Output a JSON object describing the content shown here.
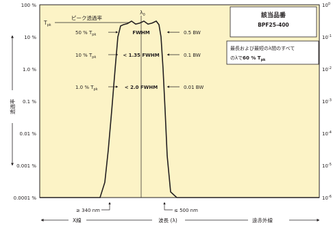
{
  "chart_data": {
    "type": "line",
    "title": "",
    "xlabel": "波長 (λ)",
    "ylabel": "透過率",
    "x_left_label": "X線",
    "x_right_label": "遠赤外線",
    "x_markers": [
      {
        "label": "≥ 340 nm",
        "value": 340
      },
      {
        "label": "≤ 500 nm",
        "value": 500
      }
    ],
    "y_scale": "log",
    "ylim": [
      0.0001,
      100
    ],
    "y_ticks_left": [
      "100 %",
      "10 %",
      "1.0 %",
      "0.1 %",
      "0.01 %",
      "0.001 %",
      "0.0001 %"
    ],
    "y_ticks_right": [
      {
        "base": "10",
        "exp": "0"
      },
      {
        "base": "10",
        "exp": "-1"
      },
      {
        "base": "10",
        "exp": "-2"
      },
      {
        "base": "10",
        "exp": "-3"
      },
      {
        "base": "10",
        "exp": "-4"
      },
      {
        "base": "10",
        "exp": "-5"
      },
      {
        "base": "10",
        "exp": "-6"
      }
    ],
    "peak_label": "ピーク透過率",
    "tpk": {
      "base": "T",
      "sub": "pk"
    },
    "center_wavelength": {
      "base": "λ",
      "sub": "0"
    },
    "annotations": [
      {
        "percent": "50 %",
        "width": "FWHM",
        "bw": "0.5 BW"
      },
      {
        "percent": "10 %",
        "width": "< 1.35 FWHM",
        "bw": "0.1 BW"
      },
      {
        "percent": "1.0 %",
        "width": "< 2.0 FWHM",
        "bw": "0.01 BW"
      }
    ],
    "product_box": {
      "heading": "該当品番",
      "part_number": "BPF25-400"
    },
    "note": {
      "line1": "最長および最短のλ間のすべて",
      "line2_prefix": "のλで",
      "line2_bold": "60 % T",
      "line2_sub": "pk"
    },
    "grid": false,
    "background": "#fcf3c6",
    "line_color": "#231f20"
  }
}
